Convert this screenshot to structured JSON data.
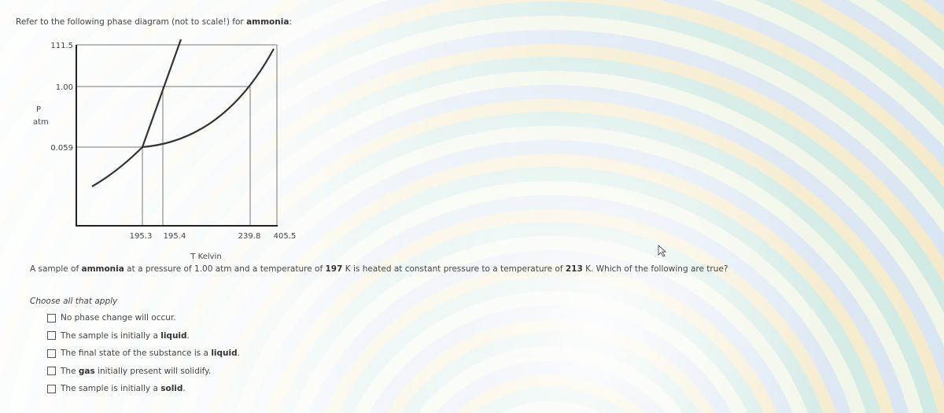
{
  "intro": [
    "Refer to the following phase diagram (not to scale!) for ",
    {
      "text": "ammonia",
      "bold": true
    },
    ":"
  ],
  "diagram": {
    "y_label": "P",
    "y_unit": "atm",
    "y_labels": [
      "111.5",
      "1.00",
      "0.059"
    ],
    "x_labels": [
      "195.3",
      "195.4",
      "239.8",
      "405.5"
    ],
    "x_title": "T Kelvin"
  },
  "question": [
    "A sample of ",
    {
      "text": "ammonia",
      "bold": true
    },
    " at a pressure of 1.00 atm and a temperature of ",
    {
      "text": "197",
      "bold": true
    },
    " K is heated at constant pressure to a temperature of ",
    {
      "text": "213",
      "bold": true
    },
    " K. Which of the following are true?"
  ],
  "instruction": "Choose all that apply",
  "options": [
    [
      "No phase change will occur."
    ],
    [
      "The sample is initially a ",
      {
        "text": "liquid",
        "bold": true
      },
      "."
    ],
    [
      "The final state of the substance is a ",
      {
        "text": "liquid",
        "bold": true
      },
      "."
    ],
    [
      "The ",
      {
        "text": "gas",
        "bold": true
      },
      " initially present will solidify."
    ],
    [
      "The sample is initially a ",
      {
        "text": "solid",
        "bold": true
      },
      "."
    ]
  ]
}
